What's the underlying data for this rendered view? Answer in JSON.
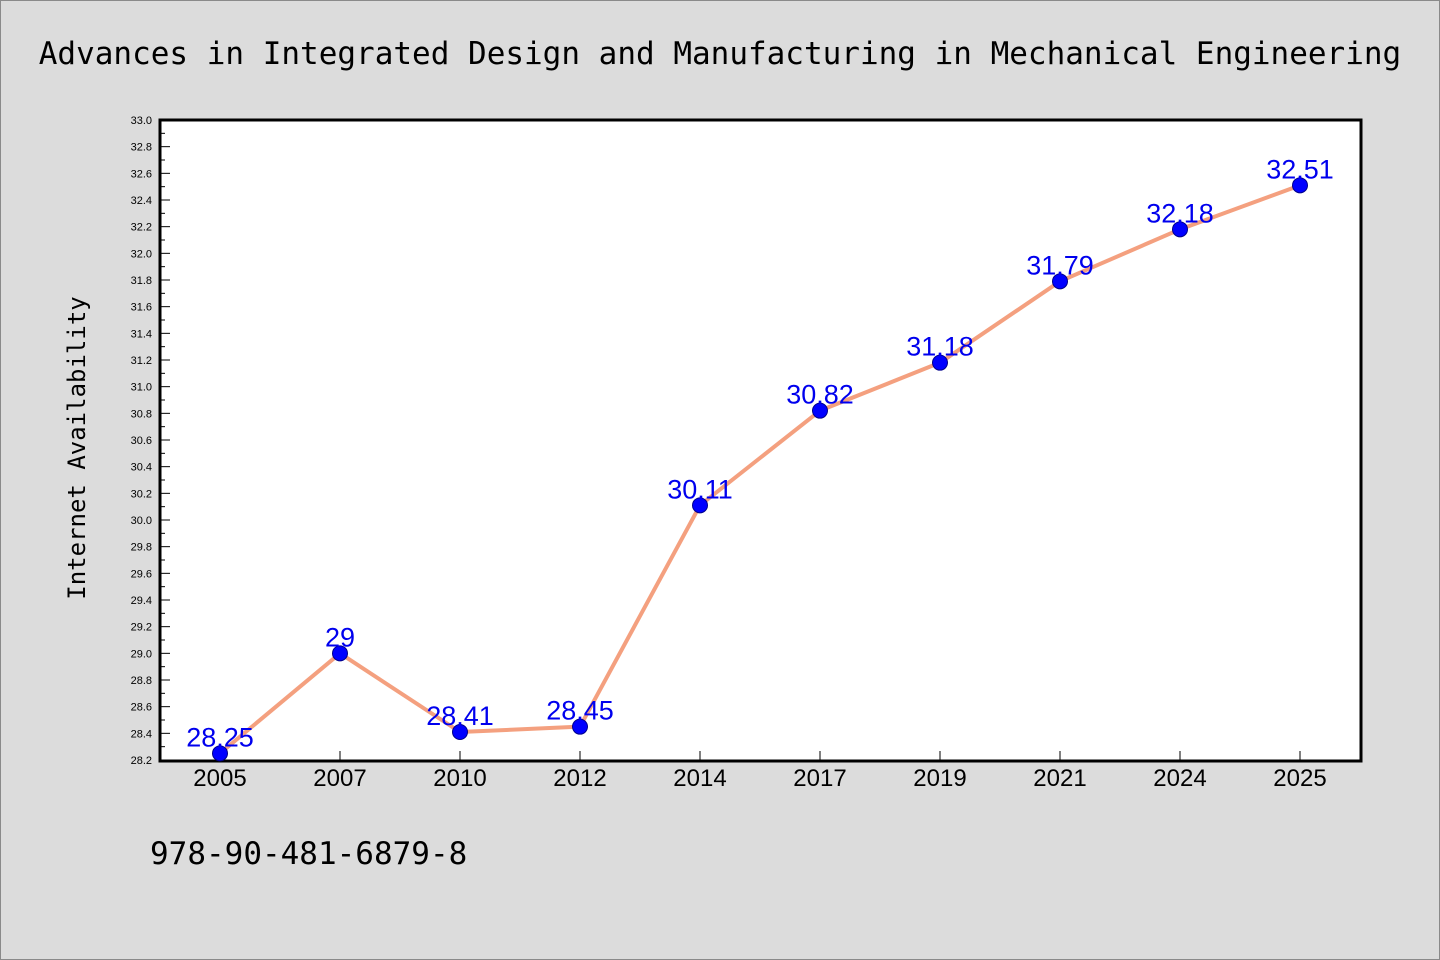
{
  "chart_data": {
    "type": "line",
    "title": "Advances in Integrated Design and Manufacturing in Mechanical Engineering",
    "xlabel": "",
    "ylabel": "Internet Availability",
    "categories": [
      "2005",
      "2007",
      "2010",
      "2012",
      "2014",
      "2017",
      "2019",
      "2021",
      "2024",
      "2025"
    ],
    "series": [
      {
        "values": [
          28.25,
          29,
          28.41,
          28.45,
          30.11,
          30.82,
          31.18,
          31.79,
          32.18,
          32.51
        ],
        "labels": [
          "28.25",
          "29",
          "28.41",
          "28.45",
          "30.11",
          "30.82",
          "31.18",
          "31.79",
          "32.18",
          "32.51"
        ],
        "line_color": "#f4a07f",
        "marker_color": "#0000ff"
      }
    ],
    "ylim": [
      28.2,
      33.0
    ],
    "yticks": [
      "28.2",
      "28.4",
      "28.6",
      "28.8",
      "29.0",
      "29.2",
      "29.4",
      "29.6",
      "29.8",
      "30.0",
      "30.2",
      "30.4",
      "30.6",
      "30.8",
      "31.0",
      "31.2",
      "31.4",
      "31.6",
      "31.8",
      "32.0",
      "32.2",
      "32.4",
      "32.6",
      "32.8",
      "33.0"
    ],
    "grid": false,
    "legend": "none"
  },
  "footer": {
    "isbn": "978-90-481-6879-8"
  }
}
